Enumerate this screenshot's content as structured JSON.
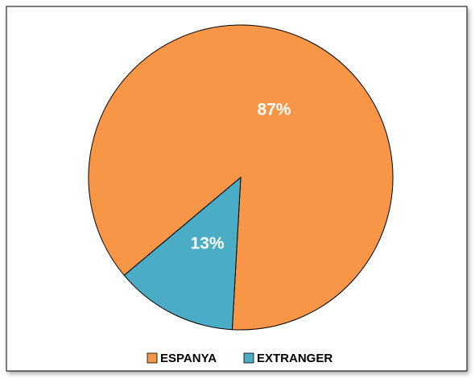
{
  "chart_data": {
    "type": "pie",
    "categories": [
      "ESPANYA",
      "EXTRANGER"
    ],
    "values": [
      87,
      13
    ],
    "value_labels": [
      "87%",
      "13%"
    ],
    "colors": [
      "#f79646",
      "#4bacc6"
    ],
    "legend": "bottom"
  }
}
